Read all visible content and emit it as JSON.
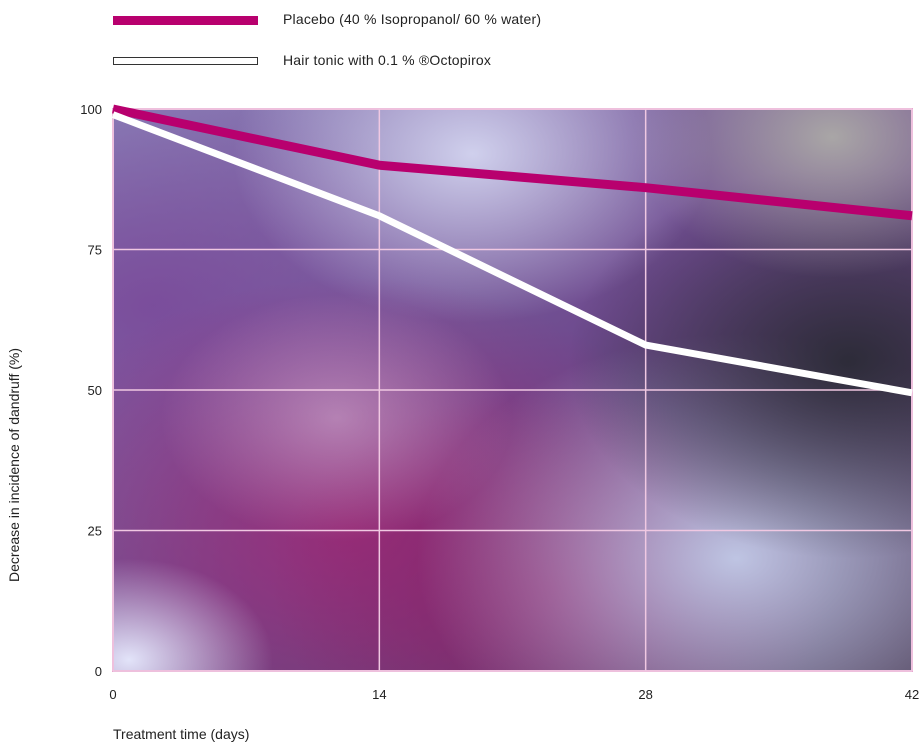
{
  "chart_data": {
    "type": "line",
    "title": "",
    "xlabel": "Treatment time (days)",
    "ylabel": "Decrease in incidence of dandruff (%)",
    "x": [
      0,
      14,
      28,
      42
    ],
    "xticks": [
      "0",
      "14",
      "28",
      "42"
    ],
    "yticks": [
      "0",
      "25",
      "50",
      "75",
      "100"
    ],
    "xlim": [
      0,
      42
    ],
    "ylim": [
      0,
      100
    ],
    "grid": true,
    "legend_position": "top-left",
    "series": [
      {
        "name": "Placebo (40 % Isopropanol/ 60 % water)",
        "values": [
          100,
          90,
          86,
          81
        ],
        "color": "#b8006e"
      },
      {
        "name": "Hair tonic with 0.1 % ®Octopirox",
        "values": [
          99,
          81,
          58,
          49.5
        ],
        "color": "#ffffff"
      }
    ],
    "background": "photographic purple / lilac blurred image behind plot area"
  }
}
